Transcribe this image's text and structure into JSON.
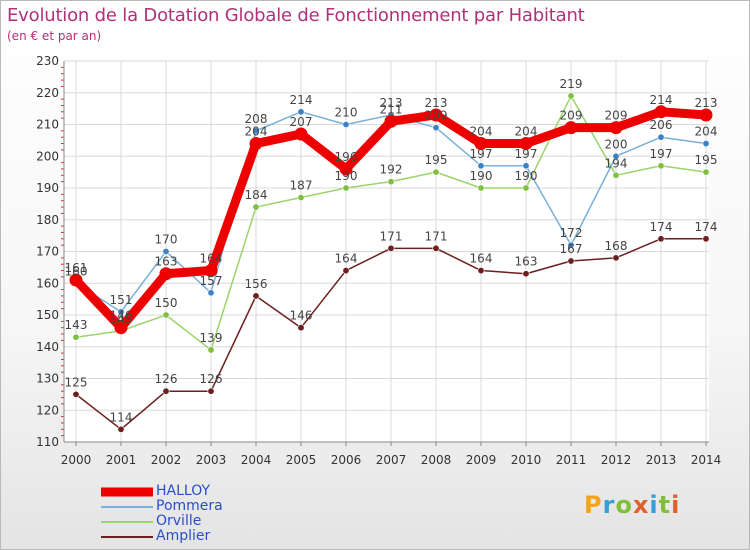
{
  "title": "Evolution de la Dotation Globale de Fonctionnement par Habitant",
  "subtitle": "(en € et par an)",
  "brand": {
    "text": "Proxiti",
    "letters": [
      {
        "ch": "P",
        "color": "#f2a51a"
      },
      {
        "ch": "r",
        "color": "#3a9ed6"
      },
      {
        "ch": "o",
        "color": "#7fbf3a"
      },
      {
        "ch": "x",
        "color": "#e2612a"
      },
      {
        "ch": "i",
        "color": "#3a9ed6"
      },
      {
        "ch": "t",
        "color": "#7fbf3a"
      },
      {
        "ch": "i",
        "color": "#e2612a"
      }
    ]
  },
  "colors": {
    "title": "#b0317a",
    "grid": "#d8d8d8",
    "axis": "#888888",
    "tick_text": "#333333",
    "minor_tick": "#d03030"
  },
  "chart_data": {
    "type": "line",
    "title": "Evolution de la Dotation Globale de Fonctionnement par Habitant",
    "subtitle": "(en € et par an)",
    "xlabel": "",
    "ylabel": "",
    "x": [
      "2000",
      "2001",
      "2002",
      "2003",
      "2004",
      "2005",
      "2006",
      "2007",
      "2008",
      "2009",
      "2010",
      "2011",
      "2012",
      "2013",
      "2014"
    ],
    "ylim": [
      110,
      230
    ],
    "yticks": [
      110,
      120,
      130,
      140,
      150,
      160,
      170,
      180,
      190,
      200,
      210,
      220,
      230
    ],
    "grid": true,
    "legend_position": "bottom-left",
    "series": [
      {
        "name": "Amplier",
        "color": "#6b1f1f",
        "marker": "#6b1f1f",
        "values": [
          125,
          114,
          126,
          126,
          156,
          146,
          164,
          171,
          171,
          164,
          163,
          167,
          168,
          174,
          174
        ],
        "labels": [
          "125",
          "114",
          "126",
          "126",
          "156",
          "146",
          "164",
          "171",
          "171",
          "164",
          "163",
          "167",
          "168",
          "174",
          "174"
        ]
      },
      {
        "name": "Orville",
        "color": "#9ad46a",
        "marker": "#7fc043",
        "values": [
          143,
          145,
          150,
          139,
          184,
          187,
          190,
          192,
          195,
          190,
          190,
          219,
          194,
          197,
          195
        ],
        "labels": [
          "143",
          "145",
          "150",
          "139",
          "184",
          "187",
          "190",
          "192",
          "195",
          "190",
          "190",
          "219",
          "194",
          "197",
          "195"
        ]
      },
      {
        "name": "Pommera",
        "color": "#7ab0d8",
        "marker": "#3b82c4",
        "values": [
          160,
          151,
          170,
          157,
          208,
          214,
          210,
          213,
          209,
          197,
          197,
          172,
          200,
          206,
          204
        ],
        "labels": [
          "160",
          "151",
          "170",
          "157",
          "208",
          "214",
          "210",
          "213",
          "209",
          "197",
          "197",
          "172",
          "200",
          "206",
          "204"
        ]
      },
      {
        "name": "HALLOY",
        "color": "#ee0000",
        "marker": "#ee0000",
        "values": [
          161,
          146,
          163,
          164,
          204,
          207,
          196,
          211,
          213,
          204,
          204,
          209,
          209,
          214,
          213
        ],
        "labels": [
          "161",
          "146",
          "163",
          "164",
          "204",
          "207",
          "196",
          "211",
          "213",
          "204",
          "204",
          "209",
          "209",
          "214",
          "213"
        ]
      }
    ],
    "legend": [
      {
        "name": "HALLOY",
        "color": "#ee0000",
        "text_color": "#2a4ec8"
      },
      {
        "name": "Pommera",
        "color": "#7ab0d8",
        "text_color": "#2a4ec8"
      },
      {
        "name": "Orville",
        "color": "#9ad46a",
        "text_color": "#2a4ec8"
      },
      {
        "name": "Amplier",
        "color": "#6b1f1f",
        "text_color": "#2a4ec8"
      }
    ]
  }
}
